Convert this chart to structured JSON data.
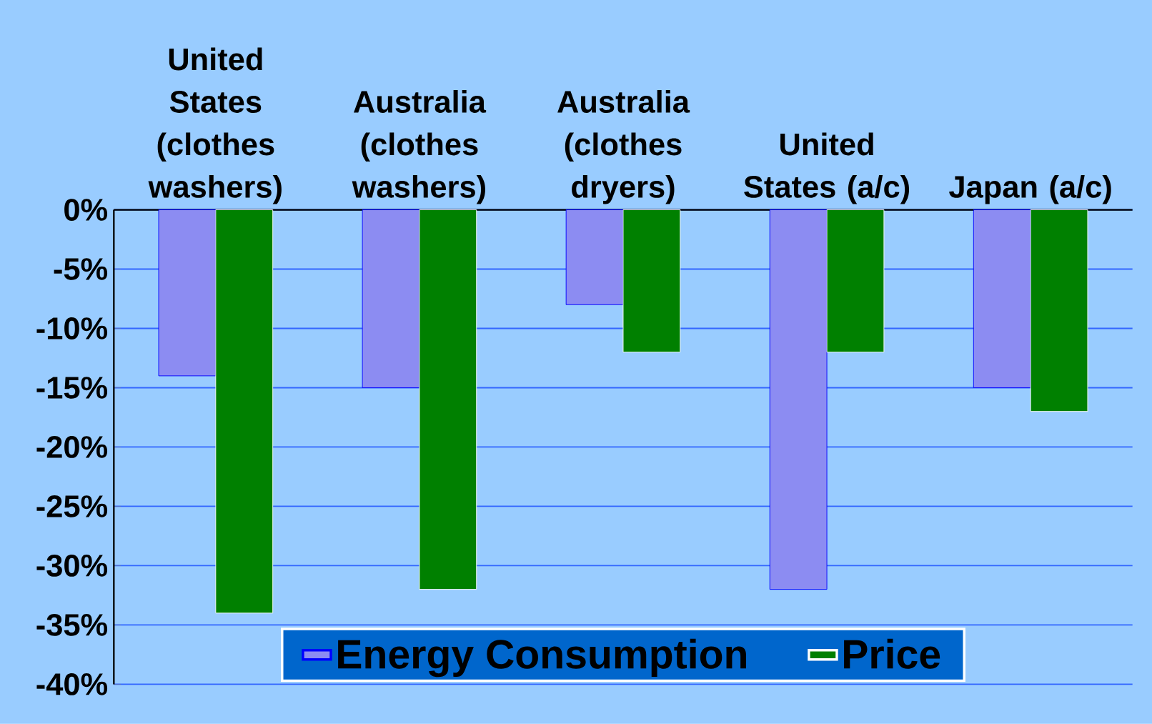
{
  "chart_data": {
    "type": "bar",
    "categories": [
      "United States (clothes washers)",
      "Australia (clothes washers)",
      "Australia (clothes dryers)",
      "United States (a/c)",
      "Japan (a/c)"
    ],
    "series": [
      {
        "name": "Energy Consumption",
        "color": "#8c8cf2",
        "values": [
          -14,
          -15,
          -8,
          -32,
          -15
        ]
      },
      {
        "name": "Price",
        "color": "#008000",
        "values": [
          -34,
          -32,
          -12,
          -12,
          -17
        ]
      }
    ],
    "ylim": [
      -40,
      0
    ],
    "yticks": [
      {
        "value": -40,
        "label": "-40%"
      },
      {
        "value": -35,
        "label": "-35%"
      },
      {
        "value": -30,
        "label": "-30%"
      },
      {
        "value": -25,
        "label": "-25%"
      },
      {
        "value": -20,
        "label": "-20%"
      },
      {
        "value": -15,
        "label": "-15%"
      },
      {
        "value": -10,
        "label": "-10%"
      },
      {
        "value": -5,
        "label": "-5%"
      },
      {
        "value": 0,
        "label": "0%"
      }
    ],
    "grid": "y",
    "legend": "bottom"
  }
}
